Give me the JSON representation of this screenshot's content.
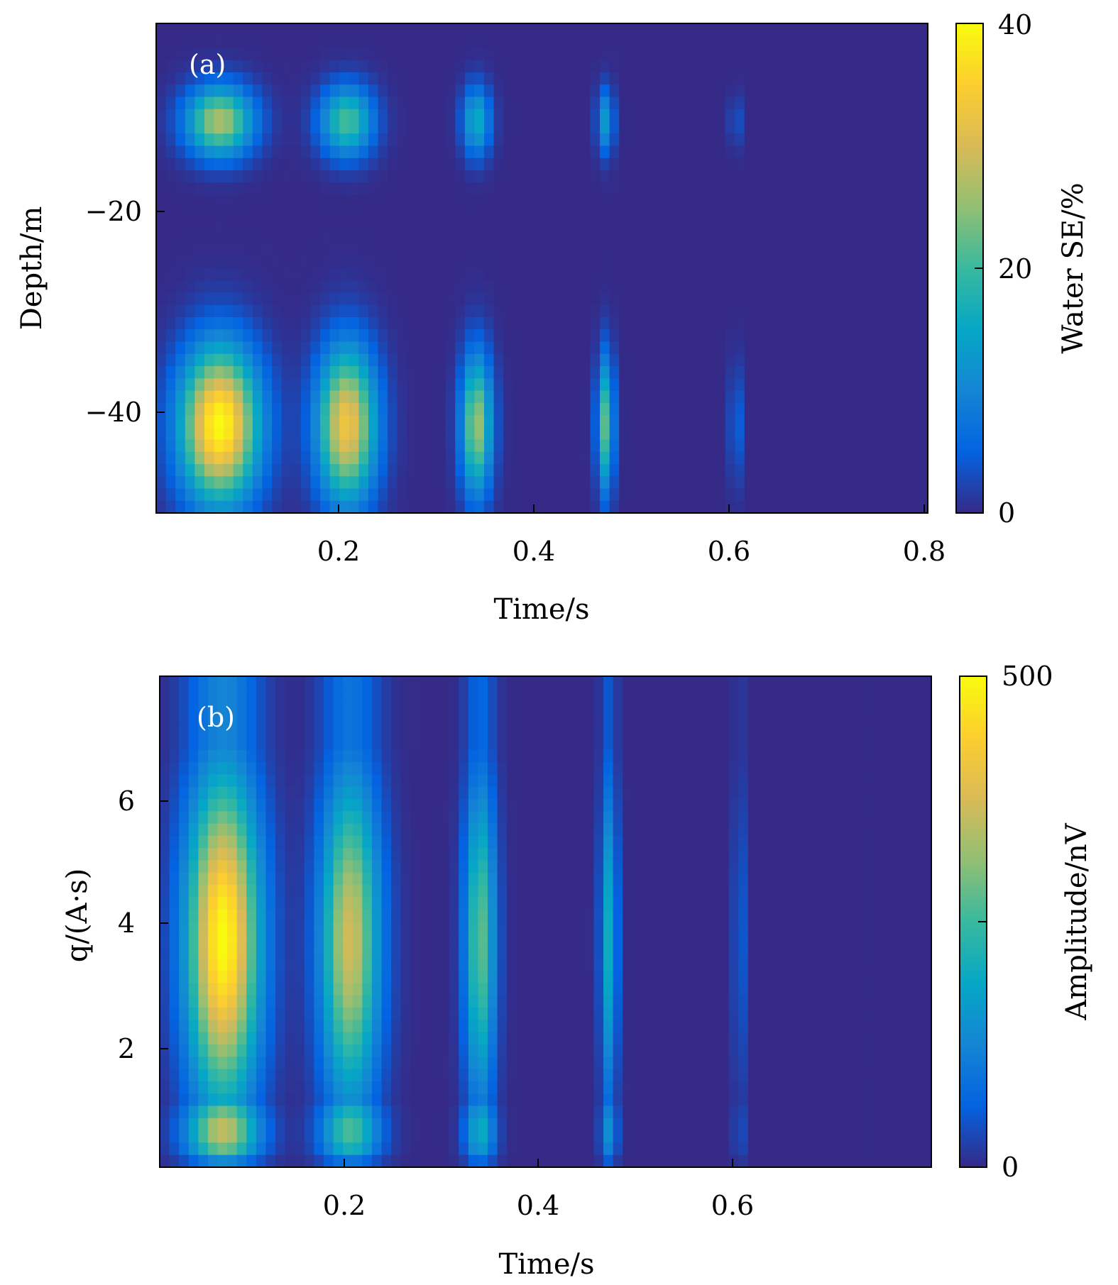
{
  "chart_data": [
    {
      "type": "heatmap",
      "panel_label": "(a)",
      "xlabel": "Time/s",
      "ylabel": "Depth/m",
      "xlim": [
        0.01,
        0.8
      ],
      "ylim": [
        -50,
        0
      ],
      "xticks": [
        0.2,
        0.4,
        0.6,
        0.8
      ],
      "xtick_labels": [
        "0.2",
        "0.4",
        "0.6",
        "0.8"
      ],
      "yticks": [
        -20,
        -40
      ],
      "ytick_labels": [
        "−20",
        "−40"
      ],
      "colorbar": {
        "label": "Water SE/%",
        "range": [
          0,
          40
        ],
        "ticks": [
          0,
          20,
          40
        ],
        "tick_labels": [
          "0",
          "20",
          "40"
        ]
      },
      "blobs": [
        {
          "t": 0.075,
          "depth": -10,
          "peak": 27,
          "sigma_t": 0.024,
          "sigma_d": 2.5
        },
        {
          "t": 0.205,
          "depth": -10,
          "peak": 21,
          "sigma_t": 0.019,
          "sigma_d": 2.5
        },
        {
          "t": 0.338,
          "depth": -10,
          "peak": 16,
          "sigma_t": 0.01,
          "sigma_d": 2.5
        },
        {
          "t": 0.47,
          "depth": -10,
          "peak": 13,
          "sigma_t": 0.006,
          "sigma_d": 2.3
        },
        {
          "t": 0.603,
          "depth": -10,
          "peak": 9,
          "sigma_t": 0.003,
          "sigma_d": 1.8
        },
        {
          "t": 0.075,
          "depth": -41,
          "peak": 40,
          "sigma_t": 0.028,
          "sigma_d": 5.5
        },
        {
          "t": 0.205,
          "depth": -41,
          "peak": 33,
          "sigma_t": 0.021,
          "sigma_d": 5.5
        },
        {
          "t": 0.338,
          "depth": -41,
          "peak": 26,
          "sigma_t": 0.011,
          "sigma_d": 5
        },
        {
          "t": 0.47,
          "depth": -41,
          "peak": 22,
          "sigma_t": 0.006,
          "sigma_d": 4.8
        },
        {
          "t": 0.603,
          "depth": -41,
          "peak": 13,
          "sigma_t": 0.003,
          "sigma_d": 4.2
        }
      ]
    },
    {
      "type": "heatmap",
      "panel_label": "(b)",
      "xlabel": "Time/s",
      "ylabel": "q/(A·s)",
      "xlim": [
        0.01,
        0.8
      ],
      "ylim": [
        0,
        8
      ],
      "xticks": [
        0.2,
        0.4,
        0.6
      ],
      "xtick_labels": [
        "0.2",
        "0.4",
        "0.6"
      ],
      "yticks": [
        2,
        4,
        6
      ],
      "ytick_labels": [
        "2",
        "4",
        "6"
      ],
      "colorbar": {
        "label": "Amplitude/nV",
        "range": [
          0,
          500
        ],
        "ticks": [
          0,
          250,
          500
        ],
        "tick_labels": [
          "0",
          "",
          "500"
        ]
      },
      "columns": [
        {
          "t": 0.075,
          "peak": 500,
          "sigma_t": 0.026
        },
        {
          "t": 0.205,
          "peak": 370,
          "sigma_t": 0.021
        },
        {
          "t": 0.338,
          "peak": 280,
          "sigma_t": 0.011
        },
        {
          "t": 0.47,
          "peak": 200,
          "sigma_t": 0.006
        },
        {
          "t": 0.603,
          "peak": 140,
          "sigma_t": 0.003
        }
      ]
    }
  ]
}
